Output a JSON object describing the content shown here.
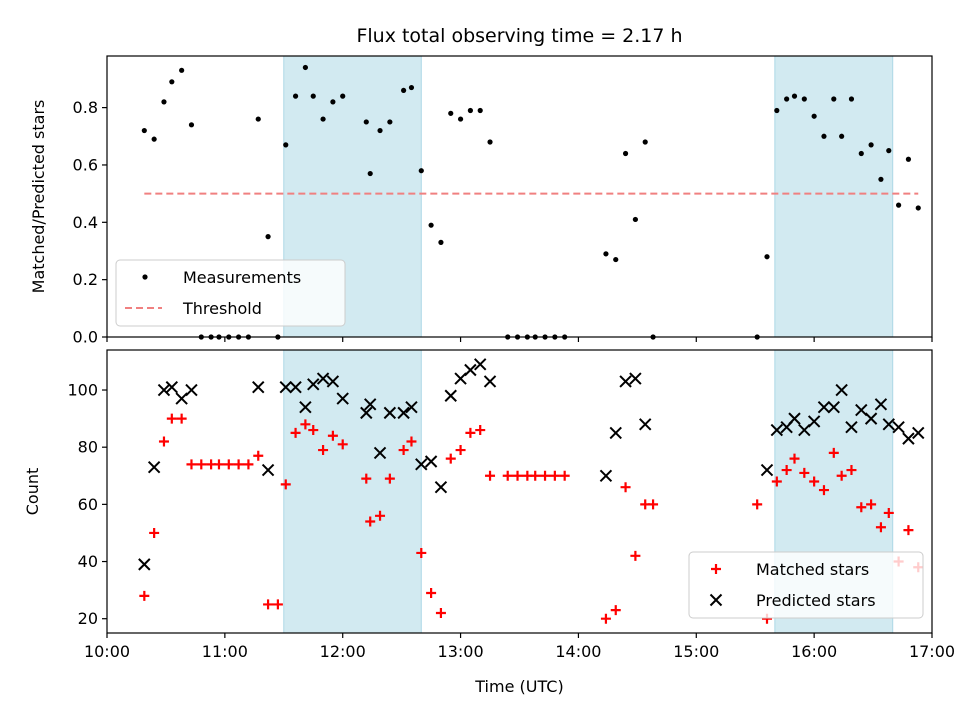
{
  "chart_data": [
    {
      "type": "scatter",
      "title": "Flux total observing time = 2.17 h",
      "ylabel": "Matched/Predicted stars",
      "xlim": [
        "10:00",
        "17:00"
      ],
      "ylim": [
        0,
        0.98
      ],
      "y_ticks": [
        0.0,
        0.2,
        0.4,
        0.6,
        0.8
      ],
      "y_tick_labels": [
        "0.0",
        "0.2",
        "0.4",
        "0.6",
        "0.8"
      ],
      "shaded_intervals": [
        [
          "11:30",
          "12:40"
        ],
        [
          "15:40",
          "16:40"
        ]
      ],
      "shade_color": "#add8e6",
      "legend_position": "lower-left",
      "series": [
        {
          "name": "Measurements",
          "marker": "dot",
          "color": "#000000",
          "points": [
            [
              "10:19",
              0.72
            ],
            [
              "10:24",
              0.69
            ],
            [
              "10:29",
              0.82
            ],
            [
              "10:33",
              0.89
            ],
            [
              "10:38",
              0.93
            ],
            [
              "10:43",
              0.74
            ],
            [
              "10:48",
              0.0
            ],
            [
              "10:53",
              0.0
            ],
            [
              "10:57",
              0.0
            ],
            [
              "11:02",
              0.0
            ],
            [
              "11:07",
              0.0
            ],
            [
              "11:12",
              0.0
            ],
            [
              "11:17",
              0.76
            ],
            [
              "11:22",
              0.35
            ],
            [
              "11:27",
              0.0
            ],
            [
              "11:31",
              0.67
            ],
            [
              "11:36",
              0.84
            ],
            [
              "11:41",
              0.94
            ],
            [
              "11:45",
              0.84
            ],
            [
              "11:50",
              0.76
            ],
            [
              "11:55",
              0.82
            ],
            [
              "12:00",
              0.84
            ],
            [
              "12:12",
              0.75
            ],
            [
              "12:14",
              0.57
            ],
            [
              "12:19",
              0.72
            ],
            [
              "12:24",
              0.75
            ],
            [
              "12:31",
              0.86
            ],
            [
              "12:35",
              0.87
            ],
            [
              "12:40",
              0.58
            ],
            [
              "12:45",
              0.39
            ],
            [
              "12:50",
              0.33
            ],
            [
              "12:55",
              0.78
            ],
            [
              "13:00",
              0.76
            ],
            [
              "13:05",
              0.79
            ],
            [
              "13:10",
              0.79
            ],
            [
              "13:15",
              0.68
            ],
            [
              "13:24",
              0.0
            ],
            [
              "13:29",
              0.0
            ],
            [
              "13:34",
              0.0
            ],
            [
              "13:38",
              0.0
            ],
            [
              "13:43",
              0.0
            ],
            [
              "13:48",
              0.0
            ],
            [
              "13:53",
              0.0
            ],
            [
              "14:14",
              0.29
            ],
            [
              "14:19",
              0.27
            ],
            [
              "14:24",
              0.64
            ],
            [
              "14:29",
              0.41
            ],
            [
              "14:34",
              0.68
            ],
            [
              "14:38",
              0.0
            ],
            [
              "15:31",
              0.0
            ],
            [
              "15:36",
              0.28
            ],
            [
              "15:41",
              0.79
            ],
            [
              "15:46",
              0.83
            ],
            [
              "15:50",
              0.84
            ],
            [
              "15:55",
              0.83
            ],
            [
              "16:00",
              0.77
            ],
            [
              "16:05",
              0.7
            ],
            [
              "16:10",
              0.83
            ],
            [
              "16:14",
              0.7
            ],
            [
              "16:19",
              0.83
            ],
            [
              "16:24",
              0.64
            ],
            [
              "16:29",
              0.67
            ],
            [
              "16:34",
              0.55
            ],
            [
              "16:38",
              0.65
            ],
            [
              "16:43",
              0.46
            ],
            [
              "16:48",
              0.62
            ],
            [
              "16:53",
              0.45
            ]
          ]
        },
        {
          "name": "Threshold",
          "line": "dashed",
          "color": "#f08080",
          "points": [
            [
              "10:19",
              0.5
            ],
            [
              "16:53",
              0.5
            ]
          ]
        }
      ]
    },
    {
      "type": "scatter",
      "xlabel": "Time (UTC)",
      "ylabel": "Count",
      "xlim": [
        "10:00",
        "17:00"
      ],
      "ylim": [
        15,
        114
      ],
      "x_ticks": [
        "10:00",
        "11:00",
        "12:00",
        "13:00",
        "14:00",
        "15:00",
        "16:00",
        "17:00"
      ],
      "y_ticks": [
        20,
        40,
        60,
        80,
        100
      ],
      "y_tick_labels": [
        "20",
        "40",
        "60",
        "80",
        "100"
      ],
      "shaded_intervals": [
        [
          "11:30",
          "12:40"
        ],
        [
          "15:40",
          "16:40"
        ]
      ],
      "shade_color": "#add8e6",
      "legend_position": "lower-right",
      "series": [
        {
          "name": "Matched stars",
          "marker": "plus",
          "color": "#ff0000",
          "points": [
            [
              "10:19",
              28
            ],
            [
              "10:24",
              50
            ],
            [
              "10:29",
              82
            ],
            [
              "10:33",
              90
            ],
            [
              "10:38",
              90
            ],
            [
              "10:43",
              74
            ],
            [
              "10:48",
              74
            ],
            [
              "10:53",
              74
            ],
            [
              "10:57",
              74
            ],
            [
              "11:02",
              74
            ],
            [
              "11:07",
              74
            ],
            [
              "11:12",
              74
            ],
            [
              "11:17",
              77
            ],
            [
              "11:22",
              25
            ],
            [
              "11:27",
              25
            ],
            [
              "11:31",
              67
            ],
            [
              "11:36",
              85
            ],
            [
              "11:41",
              88
            ],
            [
              "11:45",
              86
            ],
            [
              "11:50",
              79
            ],
            [
              "11:55",
              84
            ],
            [
              "12:00",
              81
            ],
            [
              "12:12",
              69
            ],
            [
              "12:14",
              54
            ],
            [
              "12:19",
              56
            ],
            [
              "12:24",
              69
            ],
            [
              "12:31",
              79
            ],
            [
              "12:35",
              82
            ],
            [
              "12:40",
              43
            ],
            [
              "12:45",
              29
            ],
            [
              "12:50",
              22
            ],
            [
              "12:55",
              76
            ],
            [
              "13:00",
              79
            ],
            [
              "13:05",
              85
            ],
            [
              "13:10",
              86
            ],
            [
              "13:15",
              70
            ],
            [
              "13:24",
              70
            ],
            [
              "13:29",
              70
            ],
            [
              "13:34",
              70
            ],
            [
              "13:38",
              70
            ],
            [
              "13:43",
              70
            ],
            [
              "13:48",
              70
            ],
            [
              "13:53",
              70
            ],
            [
              "14:14",
              20
            ],
            [
              "14:19",
              23
            ],
            [
              "14:24",
              66
            ],
            [
              "14:29",
              42
            ],
            [
              "14:34",
              60
            ],
            [
              "14:38",
              60
            ],
            [
              "15:31",
              60
            ],
            [
              "15:36",
              20
            ],
            [
              "15:41",
              68
            ],
            [
              "15:46",
              72
            ],
            [
              "15:50",
              76
            ],
            [
              "15:55",
              71
            ],
            [
              "16:00",
              68
            ],
            [
              "16:05",
              65
            ],
            [
              "16:10",
              78
            ],
            [
              "16:14",
              70
            ],
            [
              "16:19",
              72
            ],
            [
              "16:24",
              59
            ],
            [
              "16:29",
              60
            ],
            [
              "16:34",
              52
            ],
            [
              "16:38",
              57
            ],
            [
              "16:43",
              40
            ],
            [
              "16:48",
              51
            ],
            [
              "16:53",
              38
            ]
          ]
        },
        {
          "name": "Predicted stars",
          "marker": "x",
          "color": "#000000",
          "points": [
            [
              "10:19",
              39
            ],
            [
              "10:24",
              73
            ],
            [
              "10:29",
              100
            ],
            [
              "10:33",
              101
            ],
            [
              "10:38",
              97
            ],
            [
              "10:43",
              100
            ],
            [
              "11:17",
              101
            ],
            [
              "11:22",
              72
            ],
            [
              "11:31",
              101
            ],
            [
              "11:36",
              101
            ],
            [
              "11:41",
              94
            ],
            [
              "11:45",
              102
            ],
            [
              "11:50",
              104
            ],
            [
              "11:55",
              103
            ],
            [
              "12:00",
              97
            ],
            [
              "12:12",
              92
            ],
            [
              "12:14",
              95
            ],
            [
              "12:19",
              78
            ],
            [
              "12:24",
              92
            ],
            [
              "12:31",
              92
            ],
            [
              "12:35",
              94
            ],
            [
              "12:40",
              74
            ],
            [
              "12:45",
              75
            ],
            [
              "12:50",
              66
            ],
            [
              "12:55",
              98
            ],
            [
              "13:00",
              104
            ],
            [
              "13:05",
              107
            ],
            [
              "13:10",
              109
            ],
            [
              "13:15",
              103
            ],
            [
              "14:14",
              70
            ],
            [
              "14:19",
              85
            ],
            [
              "14:24",
              103
            ],
            [
              "14:29",
              104
            ],
            [
              "14:34",
              88
            ],
            [
              "15:36",
              72
            ],
            [
              "15:41",
              86
            ],
            [
              "15:46",
              87
            ],
            [
              "15:50",
              90
            ],
            [
              "15:55",
              86
            ],
            [
              "16:00",
              89
            ],
            [
              "16:05",
              94
            ],
            [
              "16:10",
              94
            ],
            [
              "16:14",
              100
            ],
            [
              "16:19",
              87
            ],
            [
              "16:24",
              93
            ],
            [
              "16:29",
              90
            ],
            [
              "16:34",
              95
            ],
            [
              "16:38",
              88
            ],
            [
              "16:43",
              87
            ],
            [
              "16:48",
              83
            ],
            [
              "16:53",
              85
            ]
          ]
        }
      ]
    }
  ]
}
